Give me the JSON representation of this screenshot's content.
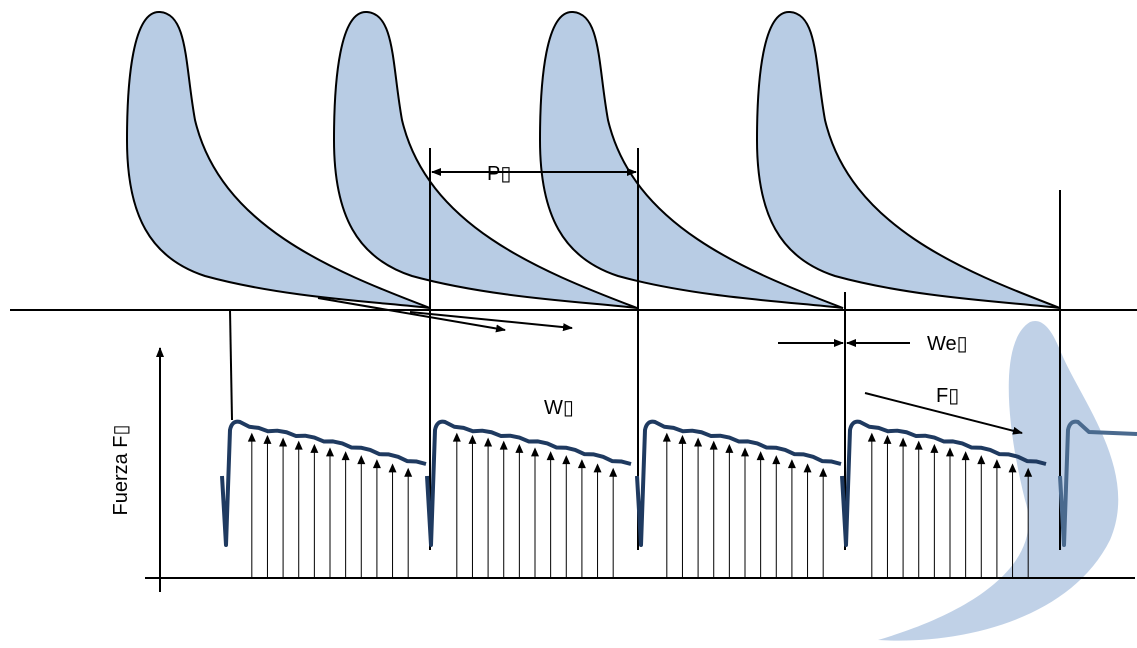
{
  "labels": {
    "pitch": "P▯",
    "wake_width": "W▯",
    "exit_width": "We▯",
    "force": "F▯",
    "axis": "Fuerza F▯"
  }
}
